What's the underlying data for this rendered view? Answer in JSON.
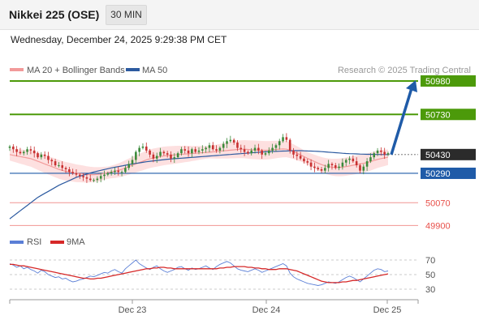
{
  "header": {
    "title": "Nikkei 225 (OSE)",
    "timeframe": "30 MIN",
    "datetime": "Wednesday, December 24, 2025 9:29:38 PM CET"
  },
  "legend": {
    "ma20": "MA 20 + Bollinger Bands",
    "ma50": "MA 50",
    "rsi": "RSI",
    "rsi_ma": "9MA"
  },
  "watermark": "Research © 2025 Trading Central",
  "colors": {
    "green": "#4c9a0a",
    "blue": "#1f5ba8",
    "red": "#e8504a",
    "bollinger": "#fcd6d6",
    "ma20": "#f29a9a",
    "ma50": "#2c5aa0",
    "rsi": "#5b7fd6",
    "rsi_ma": "#d62828",
    "candle_up": "#3a8a3a",
    "candle_down": "#c83030"
  },
  "chart_data": [
    {
      "type": "candlestick",
      "title": "Nikkei 225 (OSE)",
      "ylim": [
        49860,
        51010
      ],
      "x_tick_labels": [
        "Dec 23",
        "Dec 24",
        "Dec 25"
      ],
      "levels": [
        {
          "value": 50980,
          "label": "50980",
          "style": "resistance"
        },
        {
          "value": 50730,
          "label": "50730",
          "style": "resistance"
        },
        {
          "value": 50430,
          "label": "50430",
          "style": "last"
        },
        {
          "value": 50290,
          "label": "50290",
          "style": "pivot"
        },
        {
          "value": 50070,
          "label": "50070",
          "style": "support"
        },
        {
          "value": 49900,
          "label": "49900",
          "style": "support"
        }
      ],
      "forecast_arrow": {
        "from": 50430,
        "to": 50980
      },
      "close": [
        50490,
        50470,
        50450,
        50440,
        50450,
        50470,
        50460,
        50440,
        50410,
        50430,
        50420,
        50390,
        50380,
        50350,
        50350,
        50330,
        50320,
        50300,
        50290,
        50280,
        50270,
        50260,
        50250,
        50240,
        50240,
        50250,
        50270,
        50280,
        50290,
        50300,
        50310,
        50300,
        50300,
        50330,
        50360,
        50390,
        50450,
        50480,
        50490,
        50460,
        50430,
        50400,
        50420,
        50450,
        50440,
        50430,
        50400,
        50410,
        50440,
        50470,
        50460,
        50440,
        50470,
        50450,
        50460,
        50470,
        50480,
        50500,
        50470,
        50460,
        50480,
        50510,
        50530,
        50540,
        50520,
        50480,
        50470,
        50450,
        50440,
        50460,
        50480,
        50460,
        50430,
        50440,
        50460,
        50480,
        50500,
        50530,
        50560,
        50540,
        50460,
        50430,
        50420,
        50400,
        50380,
        50370,
        50340,
        50330,
        50320,
        50310,
        50330,
        50360,
        50350,
        50330,
        50340,
        50370,
        50390,
        50400,
        50380,
        50350,
        50310,
        50340,
        50380,
        50410,
        50440,
        50460,
        50450,
        50430,
        50440
      ],
      "ma20": [
        50430,
        50425,
        50420,
        50415,
        50410,
        50405,
        50400,
        50390,
        50380,
        50370,
        50360,
        50350,
        50340,
        50330,
        50320,
        50312,
        50305,
        50300,
        50295,
        50290,
        50288,
        50285,
        50282,
        50280,
        50280,
        50282,
        50285,
        50290,
        50295,
        50300,
        50305,
        50312,
        50320,
        50330,
        50340,
        50350,
        50360,
        50370,
        50380,
        50390,
        50398,
        50405,
        50410,
        50415,
        50420,
        50423,
        50425,
        50428,
        50430,
        50432,
        50434,
        50436,
        50438,
        50440,
        50442,
        50444,
        50446,
        50448,
        50450,
        50452,
        50455,
        50458,
        50460,
        50463,
        50465,
        50468,
        50470,
        50470,
        50468,
        50466,
        50465,
        50463,
        50462,
        50462,
        50463,
        50465,
        50468,
        50470,
        50472,
        50470,
        50462,
        50452,
        50440,
        50428,
        50415,
        50402,
        50390,
        50378,
        50366,
        50355,
        50346,
        50340,
        50336,
        50334,
        50334,
        50336,
        50340,
        50345,
        50350,
        50355,
        50360,
        50365,
        50370,
        50378,
        50386,
        50394,
        50400,
        50405,
        50410
      ],
      "ma50": [
        49950,
        49970,
        49990,
        50010,
        50030,
        50050,
        50070,
        50090,
        50110,
        50125,
        50140,
        50155,
        50170,
        50185,
        50200,
        50212,
        50224,
        50236,
        50248,
        50260,
        50268,
        50276,
        50284,
        50292,
        50300,
        50306,
        50312,
        50318,
        50324,
        50330,
        50335,
        50340,
        50345,
        50350,
        50355,
        50360,
        50364,
        50368,
        50372,
        50376,
        50380,
        50383,
        50386,
        50389,
        50392,
        50395,
        50397,
        50399,
        50401,
        50403,
        50405,
        50407,
        50409,
        50411,
        50413,
        50415,
        50417,
        50419,
        50421,
        50423,
        50425,
        50427,
        50429,
        50431,
        50433,
        50435,
        50437,
        50439,
        50441,
        50443,
        50445,
        50447,
        50449,
        50451,
        50452,
        50453,
        50454,
        50455,
        50456,
        50457,
        50458,
        50459,
        50459,
        50459,
        50458,
        50457,
        50456,
        50455,
        50454,
        50452,
        50450,
        50448,
        50446,
        50444,
        50442,
        50440,
        50438,
        50437,
        50436,
        50435,
        50434,
        50433,
        50432,
        50432,
        50431,
        50431,
        50430,
        50430,
        50430
      ]
    },
    {
      "type": "line",
      "ylim": [
        20,
        80
      ],
      "y_ticks": [
        70,
        50,
        30
      ],
      "series": [
        {
          "name": "RSI",
          "values": [
            65,
            63,
            60,
            62,
            58,
            60,
            57,
            55,
            52,
            56,
            54,
            50,
            48,
            46,
            47,
            44,
            45,
            42,
            40,
            41,
            43,
            44,
            46,
            48,
            47,
            49,
            51,
            53,
            52,
            55,
            57,
            54,
            52,
            58,
            62,
            66,
            70,
            65,
            62,
            59,
            57,
            60,
            62,
            58,
            55,
            53,
            55,
            57,
            60,
            61,
            58,
            56,
            59,
            57,
            58,
            60,
            62,
            59,
            57,
            61,
            64,
            66,
            68,
            66,
            62,
            58,
            56,
            55,
            54,
            56,
            58,
            56,
            53,
            55,
            57,
            59,
            61,
            63,
            65,
            62,
            52,
            47,
            44,
            42,
            40,
            38,
            37,
            36,
            35,
            36,
            38,
            40,
            39,
            38,
            40,
            43,
            46,
            48,
            46,
            43,
            40,
            44,
            48,
            52,
            56,
            58,
            57,
            54,
            55
          ]
        },
        {
          "name": "9MA",
          "values": [
            64,
            64,
            63,
            62,
            62,
            61,
            60,
            59,
            58,
            57,
            56,
            55,
            54,
            53,
            52,
            51,
            50,
            49,
            48,
            47,
            46,
            45,
            45,
            44,
            44,
            45,
            45,
            46,
            47,
            48,
            49,
            50,
            51,
            52,
            53,
            54,
            55,
            56,
            57,
            58,
            58,
            59,
            59,
            60,
            60,
            59,
            59,
            58,
            58,
            58,
            58,
            58,
            58,
            58,
            58,
            58,
            58,
            58,
            58,
            58,
            59,
            59,
            60,
            60,
            61,
            61,
            61,
            61,
            60,
            60,
            59,
            59,
            58,
            58,
            57,
            57,
            57,
            58,
            58,
            58,
            57,
            56,
            55,
            53,
            51,
            49,
            47,
            45,
            43,
            41,
            40,
            39,
            39,
            39,
            39,
            40,
            40,
            41,
            42,
            42,
            43,
            44,
            45,
            46,
            47,
            48,
            49,
            50,
            51
          ]
        }
      ]
    }
  ]
}
